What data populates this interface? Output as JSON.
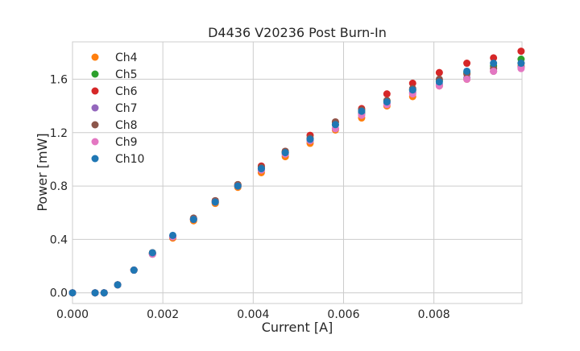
{
  "chart_data": {
    "type": "scatter",
    "title": "D4436 V20236 Post Burn-In",
    "xlabel": "Current [A]",
    "ylabel": "Power [mW]",
    "xlim": [
      0,
      0.00995
    ],
    "ylim": [
      -0.08,
      1.88
    ],
    "xticks": [
      0,
      0.002,
      0.004,
      0.006,
      0.008
    ],
    "xtick_labels": [
      "0.000",
      "0.002",
      "0.004",
      "0.006",
      "0.008"
    ],
    "yticks": [
      0,
      0.4,
      0.8,
      1.2,
      1.6
    ],
    "ytick_labels": [
      "0.0",
      "0.4",
      "0.8",
      "1.2",
      "1.6"
    ],
    "grid": true,
    "legend_position": "top-left",
    "x": [
      0.0,
      0.0005,
      0.0007,
      0.001,
      0.00136,
      0.00177,
      0.00222,
      0.00268,
      0.00316,
      0.00366,
      0.00418,
      0.00471,
      0.00526,
      0.00582,
      0.0064,
      0.00696,
      0.00753,
      0.00812,
      0.00873,
      0.00932,
      0.00993
    ],
    "series": [
      {
        "name": "Ch4",
        "color": "#ff7f0e",
        "values": [
          0.0,
          0.0,
          0.0,
          0.06,
          0.17,
          0.29,
          0.41,
          0.54,
          0.67,
          0.79,
          0.9,
          1.02,
          1.12,
          1.22,
          1.31,
          1.4,
          1.47,
          1.55,
          1.6,
          1.66,
          1.7
        ]
      },
      {
        "name": "Ch5",
        "color": "#2ca02c",
        "values": [
          0.0,
          0.0,
          0.0,
          0.06,
          0.17,
          0.3,
          0.42,
          0.55,
          0.68,
          0.81,
          0.93,
          1.05,
          1.15,
          1.26,
          1.35,
          1.44,
          1.52,
          1.59,
          1.65,
          1.7,
          1.75
        ]
      },
      {
        "name": "Ch6",
        "color": "#d62728",
        "values": [
          0.0,
          0.0,
          0.0,
          0.06,
          0.17,
          0.3,
          0.42,
          0.55,
          0.69,
          0.81,
          0.95,
          1.06,
          1.18,
          1.28,
          1.38,
          1.49,
          1.57,
          1.65,
          1.72,
          1.76,
          1.81
        ]
      },
      {
        "name": "Ch7",
        "color": "#9467bd",
        "values": [
          0.0,
          0.0,
          0.0,
          0.06,
          0.17,
          0.29,
          0.42,
          0.55,
          0.68,
          0.8,
          0.92,
          1.04,
          1.14,
          1.23,
          1.34,
          1.42,
          1.5,
          1.56,
          1.61,
          1.66,
          1.69
        ]
      },
      {
        "name": "Ch8",
        "color": "#8c564b",
        "values": [
          0.0,
          0.0,
          0.0,
          0.06,
          0.17,
          0.29,
          0.42,
          0.56,
          0.69,
          0.81,
          0.94,
          1.06,
          1.16,
          1.28,
          1.37,
          1.44,
          1.53,
          1.6,
          1.64,
          1.68,
          1.72
        ]
      },
      {
        "name": "Ch9",
        "color": "#e377c2",
        "values": [
          0.0,
          0.0,
          0.0,
          0.06,
          0.17,
          0.29,
          0.42,
          0.55,
          0.68,
          0.8,
          0.92,
          1.04,
          1.14,
          1.23,
          1.33,
          1.41,
          1.49,
          1.55,
          1.6,
          1.66,
          1.68
        ]
      },
      {
        "name": "Ch10",
        "color": "#1f77b4",
        "values": [
          0.0,
          0.0,
          0.0,
          0.06,
          0.17,
          0.3,
          0.43,
          0.55,
          0.68,
          0.8,
          0.93,
          1.05,
          1.15,
          1.26,
          1.36,
          1.43,
          1.52,
          1.58,
          1.66,
          1.72,
          1.72
        ]
      }
    ]
  }
}
